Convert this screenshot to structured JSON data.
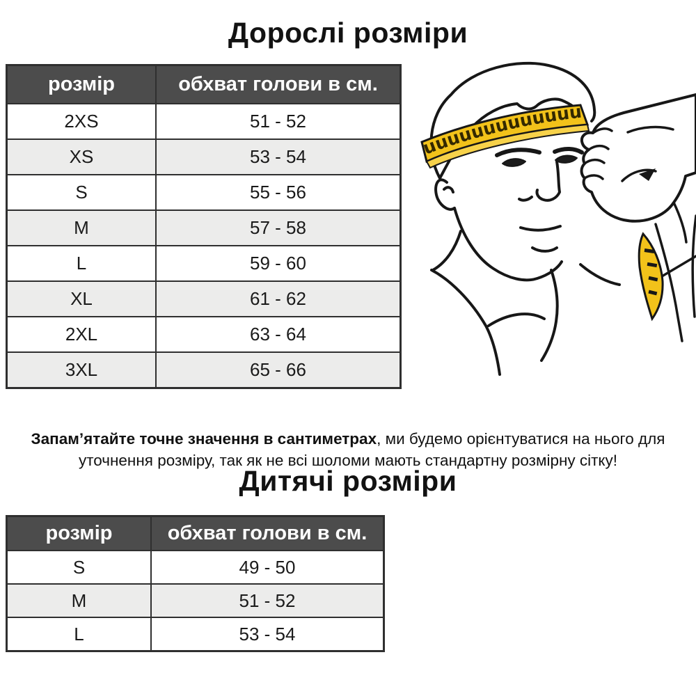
{
  "adult_section": {
    "title": "Дорослі розміри",
    "table": {
      "headers": [
        "розмір",
        "обхват голови в см."
      ],
      "rows": [
        [
          "2XS",
          "51 - 52"
        ],
        [
          "XS",
          "53 - 54"
        ],
        [
          "S",
          "55 - 56"
        ],
        [
          "M",
          "57 - 58"
        ],
        [
          "L",
          "59 - 60"
        ],
        [
          "XL",
          "61 - 62"
        ],
        [
          "2XL",
          "63 - 64"
        ],
        [
          "3XL",
          "65 - 66"
        ]
      ]
    }
  },
  "note": {
    "bold": "Запам’ятайте точне значення в сантиметрах",
    "regular": ", ми будемо орієнтуватися на нього для уточнення розміру, так як не всі шоломи мають стандартну розмірну сітку!"
  },
  "kids_section": {
    "title": "Дитячі розміри",
    "table": {
      "headers": [
        "розмір",
        "обхват голови в см."
      ],
      "rows": [
        [
          "S",
          "49 - 50"
        ],
        [
          "M",
          "51 - 52"
        ],
        [
          "L",
          "53 - 54"
        ]
      ]
    }
  },
  "illustration": {
    "description": "Line drawing of a man measuring his head circumference with a yellow measuring tape",
    "tape_color": "#f2c21a"
  },
  "colors": {
    "header_bg": "#4c4c4c",
    "header_text": "#ffffff",
    "row_alt": "#ececeb",
    "table_border": "#2f2f2f",
    "text": "#111111",
    "tape_yellow": "#f2c21a"
  }
}
